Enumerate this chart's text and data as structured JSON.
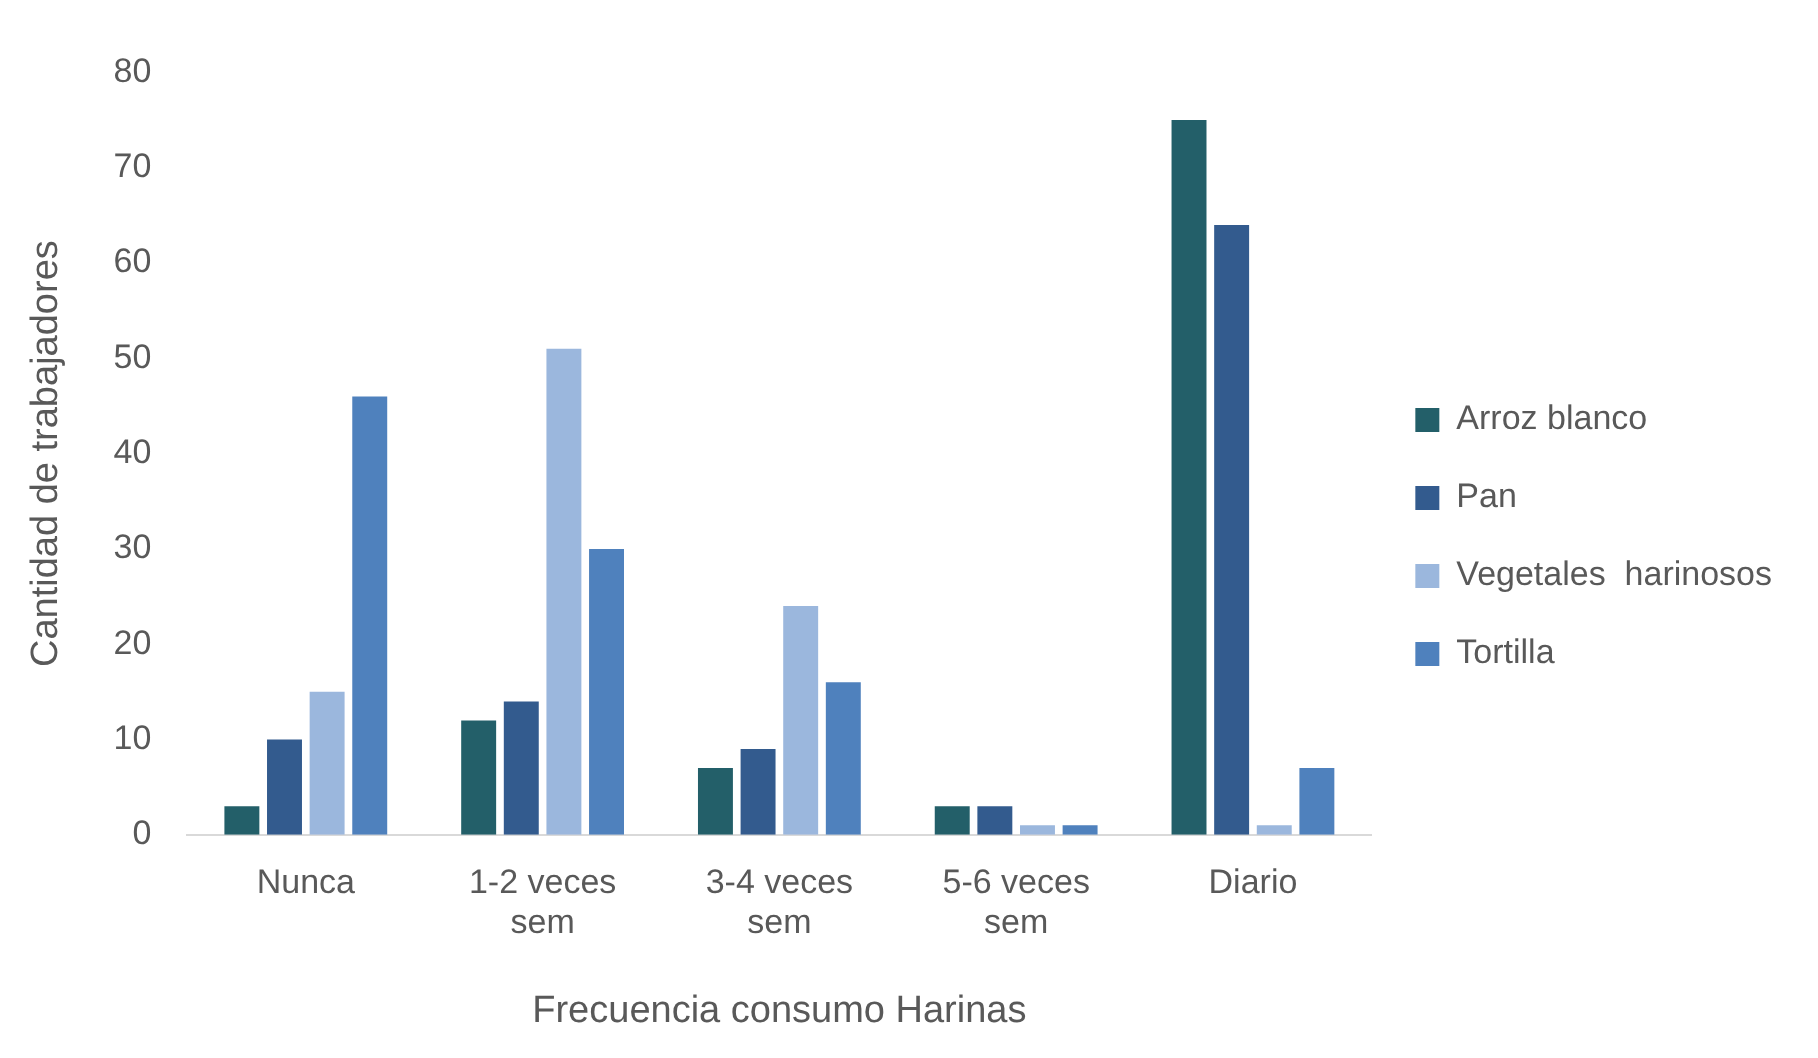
{
  "chart_data": {
    "type": "bar",
    "xlabel": "Frecuencia consumo Harinas",
    "ylabel": "Cantidad de trabajadores",
    "categories": [
      "Nunca",
      "1-2 veces sem",
      "3-4 veces sem",
      "5-6 veces sem",
      "Diario"
    ],
    "series": [
      {
        "name": "Arroz blanco",
        "color": "#235f69",
        "values": [
          3,
          12,
          7,
          3,
          75
        ]
      },
      {
        "name": "Pan",
        "color": "#335b8e",
        "values": [
          10,
          14,
          9,
          3,
          64
        ]
      },
      {
        "name": "Vegetales  harinosos",
        "color": "#9bb7dd",
        "values": [
          15,
          51,
          24,
          1,
          1
        ]
      },
      {
        "name": "Tortilla",
        "color": "#4f81bd",
        "values": [
          46,
          30,
          16,
          1,
          7
        ]
      }
    ],
    "ylim": [
      0,
      80
    ],
    "yticks": [
      0,
      10,
      20,
      30,
      40,
      50,
      60,
      70,
      80
    ],
    "grid": false,
    "legend": "right"
  }
}
